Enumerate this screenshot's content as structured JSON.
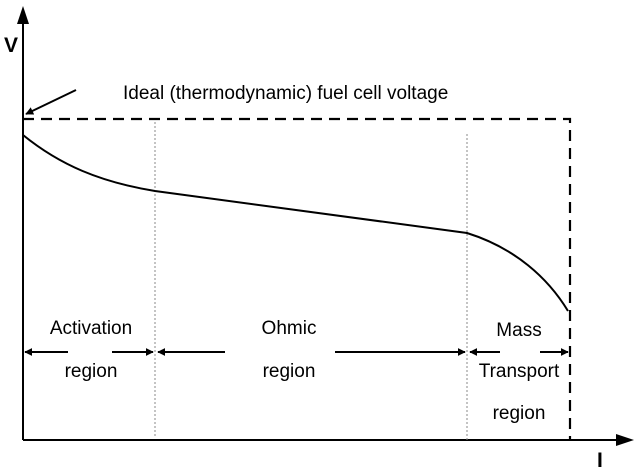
{
  "chart_data": {
    "type": "line",
    "xlabel": "I",
    "ylabel": "V",
    "x_ticks": "none",
    "y_ticks": "none",
    "grid": false,
    "ideal_voltage_label": "Ideal (thermodynamic) fuel cell voltage",
    "series": [
      {
        "style": "solid",
        "description_points": [
          [
            0,
            0.95
          ],
          [
            0.24,
            0.782
          ],
          [
            0.812,
            0.675
          ],
          [
            1.0,
            0.42
          ]
        ]
      }
    ],
    "ideal_voltage_line": {
      "style": "dashed",
      "level": 1.0,
      "x_end": 1.0
    },
    "region_boundaries": [
      0.24,
      0.812
    ],
    "regions": [
      {
        "lines": [
          "Activation",
          "region"
        ]
      },
      {
        "lines": [
          "Ohmic",
          "region"
        ]
      },
      {
        "lines": [
          "Mass",
          "Transport",
          "region"
        ]
      }
    ]
  }
}
